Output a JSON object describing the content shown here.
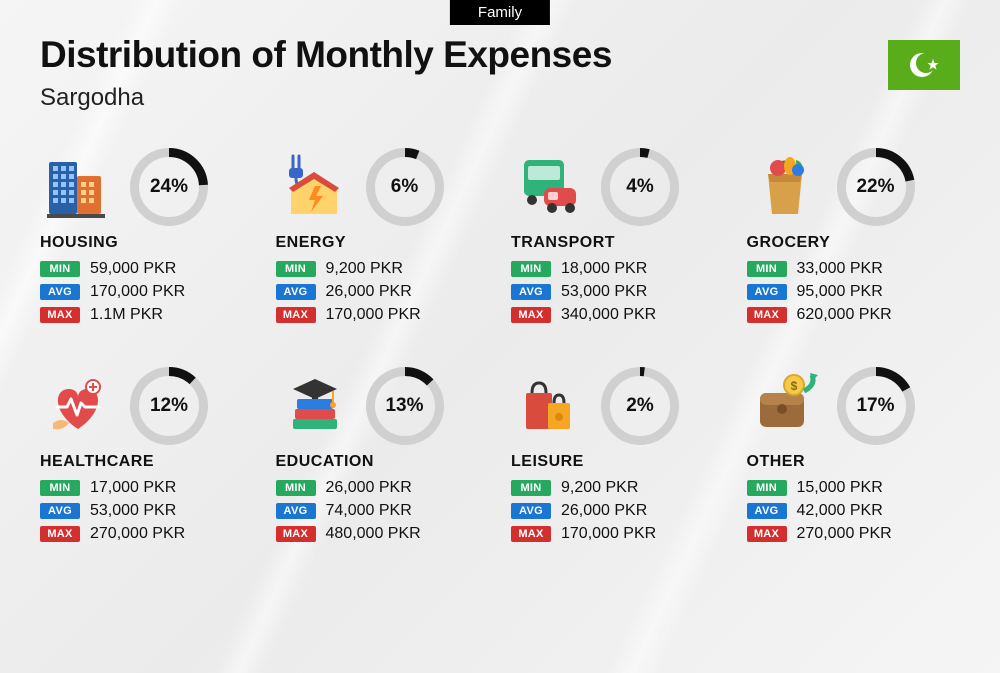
{
  "header": {
    "tab": "Family",
    "title": "Distribution of Monthly Expenses",
    "city": "Sargodha"
  },
  "flag": {
    "bg": "#5aad1a"
  },
  "labels": {
    "min": "MIN",
    "avg": "AVG",
    "max": "MAX"
  },
  "badge_colors": {
    "min": "#27a85f",
    "avg": "#1976d2",
    "max": "#d32f2f"
  },
  "donut": {
    "size": 78,
    "thickness": 9,
    "track_color": "#d0d0d0",
    "fill_color": "#111111"
  },
  "categories": [
    {
      "name": "HOUSING",
      "pct": 24,
      "min": "59,000 PKR",
      "avg": "170,000 PKR",
      "max": "1.1M PKR",
      "icon": "buildings"
    },
    {
      "name": "ENERGY",
      "pct": 6,
      "min": "9,200 PKR",
      "avg": "26,000 PKR",
      "max": "170,000 PKR",
      "icon": "energy"
    },
    {
      "name": "TRANSPORT",
      "pct": 4,
      "min": "18,000 PKR",
      "avg": "53,000 PKR",
      "max": "340,000 PKR",
      "icon": "transport"
    },
    {
      "name": "GROCERY",
      "pct": 22,
      "min": "33,000 PKR",
      "avg": "95,000 PKR",
      "max": "620,000 PKR",
      "icon": "grocery"
    },
    {
      "name": "HEALTHCARE",
      "pct": 12,
      "min": "17,000 PKR",
      "avg": "53,000 PKR",
      "max": "270,000 PKR",
      "icon": "healthcare"
    },
    {
      "name": "EDUCATION",
      "pct": 13,
      "min": "26,000 PKR",
      "avg": "74,000 PKR",
      "max": "480,000 PKR",
      "icon": "education"
    },
    {
      "name": "LEISURE",
      "pct": 2,
      "min": "9,200 PKR",
      "avg": "26,000 PKR",
      "max": "170,000 PKR",
      "icon": "leisure"
    },
    {
      "name": "OTHER",
      "pct": 17,
      "min": "15,000 PKR",
      "avg": "42,000 PKR",
      "max": "270,000 PKR",
      "icon": "other"
    }
  ]
}
